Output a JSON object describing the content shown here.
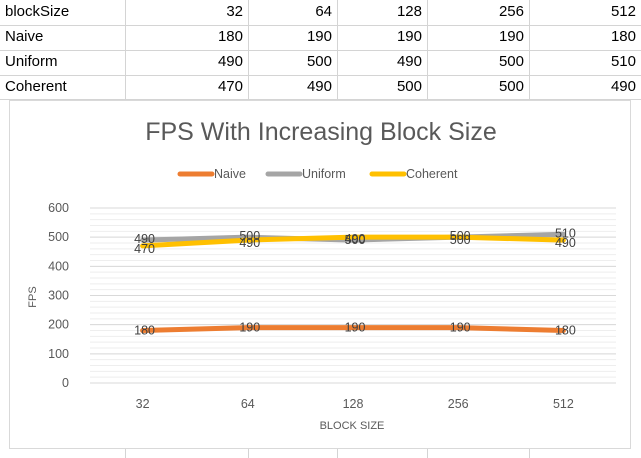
{
  "sheet": {
    "rows": [
      [
        "blockSize",
        "32",
        "64",
        "128",
        "256",
        "512"
      ],
      [
        "Naive",
        "180",
        "190",
        "190",
        "190",
        "180"
      ],
      [
        "Uniform",
        "490",
        "500",
        "490",
        "500",
        "510"
      ],
      [
        "Coherent",
        "470",
        "490",
        "500",
        "500",
        "490"
      ]
    ]
  },
  "chart_data": {
    "type": "line",
    "title": "FPS With Increasing Block Size",
    "xlabel": "BLOCK SIZE",
    "ylabel": "FPS",
    "categories": [
      "32",
      "64",
      "128",
      "256",
      "512"
    ],
    "ylim": [
      0,
      600
    ],
    "yticks": [
      "0",
      "100",
      "200",
      "300",
      "400",
      "500",
      "600"
    ],
    "legend_position": "top",
    "grid": true,
    "series": [
      {
        "name": "Naive",
        "values": [
          180,
          190,
          190,
          190,
          180
        ],
        "labels": [
          "180",
          "190",
          "190",
          "190",
          "180"
        ],
        "color": "#ed7d31"
      },
      {
        "name": "Uniform",
        "values": [
          490,
          500,
          490,
          500,
          510
        ],
        "labels": [
          "490",
          "500",
          "490",
          "500",
          "510"
        ],
        "color": "#a5a5a5"
      },
      {
        "name": "Coherent",
        "values": [
          470,
          490,
          500,
          500,
          490
        ],
        "labels": [
          "470",
          "490",
          "500",
          "500",
          "490"
        ],
        "color": "#ffc000"
      }
    ]
  },
  "colors": {
    "gridline": "#d9d9d9",
    "minor_gridline": "#eeeeee",
    "cell_border": "#d4d4d4"
  }
}
